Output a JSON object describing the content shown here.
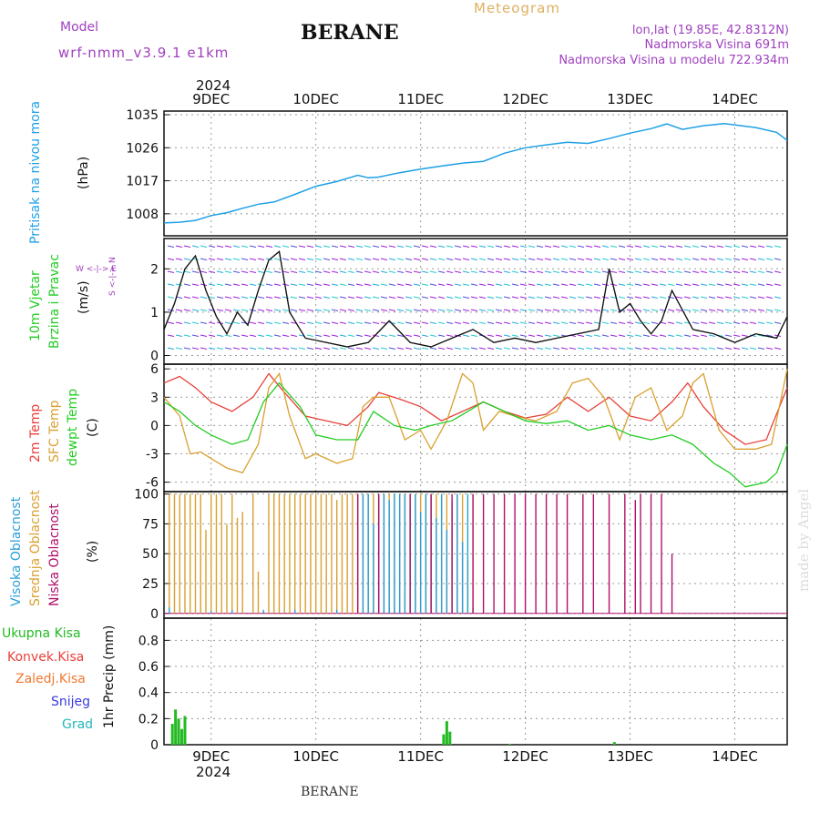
{
  "header": {
    "model_label": "Model",
    "model_name": "wrf-nmm_v3.9.1 e1km",
    "title": "BERANE",
    "subtitle": "Meteogram",
    "coords": "lon,lat (19.85E, 42.8312N)",
    "elev": "Nadmorska Visina 691m",
    "elev_model": "Nadmorska Visina u modelu 722.934m",
    "footer_title": "BERANE",
    "credit": "made by Angel"
  },
  "colors": {
    "pressure": "#1ea0e6",
    "t2m": "#e8403a",
    "sfc": "#d9a030",
    "dew": "#22cc22",
    "high_cloud": "#2a9fd8",
    "mid_cloud": "#d9a030",
    "low_cloud": "#b0106a",
    "total_precip": "#22bb22",
    "convective": "#e8403a",
    "frozen": "#f07830",
    "snow": "#3a3ae0",
    "hail": "#22b8b8",
    "purple": "#a040c0"
  },
  "axis": {
    "year_top": "2024",
    "year_bottom": "2024",
    "dates": [
      "9DEC",
      "10DEC",
      "11DEC",
      "12DEC",
      "13DEC",
      "14DEC"
    ]
  },
  "panel_labels": {
    "pressure": {
      "name": "Pritisak na nivou mora",
      "unit": "(hPa)"
    },
    "wind": {
      "name1": "10m Vjetar",
      "name2": "Brzina i Pravac",
      "unit": "(m/s)",
      "compass_ns": "S <-|-> N",
      "compass_we": "W <-|-> E"
    },
    "temp": {
      "t2m": "2m Temp",
      "sfc": "SFC Temp",
      "dew": "dewpt Temp",
      "unit": "(C)"
    },
    "cloud": {
      "high": "Visoka Oblacnost",
      "mid": "Srednja Oblacnost",
      "low": "Niska Oblacnost",
      "unit": "(%)"
    },
    "precip": {
      "total": "Ukupna Kisa",
      "conv": "Konvek.Kisa",
      "frozen": "Zaledj.Kisa",
      "snow": "Snijeg",
      "hail": "Grad",
      "unit": "1hr Precip (mm)"
    }
  },
  "chart_data": [
    {
      "type": "line",
      "name": "pressure",
      "x": [
        8.55,
        8.7,
        8.85,
        9.0,
        9.15,
        9.3,
        9.45,
        9.6,
        9.8,
        10.0,
        10.2,
        10.4,
        10.5,
        10.6,
        10.8,
        11.0,
        11.2,
        11.4,
        11.6,
        11.8,
        12.0,
        12.2,
        12.4,
        12.6,
        12.8,
        13.0,
        13.2,
        13.35,
        13.5,
        13.7,
        13.9,
        14.2,
        14.4,
        14.5
      ],
      "y": [
        1005.5,
        1005.7,
        1006.2,
        1007.5,
        1008.3,
        1009.5,
        1010.6,
        1011.2,
        1013.3,
        1015.5,
        1016.8,
        1018.5,
        1017.8,
        1018.0,
        1019.2,
        1020.2,
        1021.0,
        1021.8,
        1022.3,
        1024.5,
        1026.0,
        1026.8,
        1027.5,
        1027.2,
        1028.5,
        1030.0,
        1031.2,
        1032.5,
        1031.0,
        1032.0,
        1032.6,
        1031.5,
        1030.2,
        1028.0
      ],
      "yticks": [
        1008,
        1017,
        1026,
        1035
      ],
      "ylim": [
        1002,
        1036
      ]
    },
    {
      "type": "line",
      "name": "wind_speed",
      "x": [
        8.55,
        8.65,
        8.75,
        8.85,
        8.95,
        9.05,
        9.15,
        9.25,
        9.35,
        9.45,
        9.55,
        9.65,
        9.75,
        9.9,
        10.1,
        10.3,
        10.5,
        10.7,
        10.9,
        11.1,
        11.3,
        11.5,
        11.7,
        11.9,
        12.1,
        12.3,
        12.5,
        12.7,
        12.8,
        12.9,
        13.0,
        13.1,
        13.2,
        13.3,
        13.4,
        13.6,
        13.8,
        14.0,
        14.2,
        14.4,
        14.5
      ],
      "y": [
        0.6,
        1.2,
        2.0,
        2.3,
        1.5,
        0.9,
        0.5,
        1.0,
        0.7,
        1.5,
        2.2,
        2.4,
        1.0,
        0.4,
        0.3,
        0.2,
        0.3,
        0.8,
        0.3,
        0.2,
        0.4,
        0.6,
        0.3,
        0.4,
        0.3,
        0.4,
        0.5,
        0.6,
        2.0,
        1.0,
        1.2,
        0.8,
        0.5,
        0.8,
        1.5,
        0.6,
        0.5,
        0.3,
        0.5,
        0.4,
        0.9
      ],
      "yticks": [
        0,
        1,
        2
      ],
      "ylim": [
        -0.2,
        2.7
      ]
    },
    {
      "type": "line",
      "name": "temperature",
      "yticks": [
        -6,
        -3,
        0,
        3,
        6
      ],
      "ylim": [
        -7,
        6.5
      ],
      "series": [
        {
          "name": "2m Temp",
          "x": [
            8.55,
            8.7,
            8.85,
            9.0,
            9.2,
            9.4,
            9.55,
            9.7,
            9.9,
            10.1,
            10.3,
            10.5,
            10.6,
            10.8,
            11.0,
            11.2,
            11.4,
            11.6,
            11.8,
            12.0,
            12.2,
            12.4,
            12.6,
            12.8,
            13.0,
            13.2,
            13.4,
            13.55,
            13.7,
            13.9,
            14.1,
            14.3,
            14.5
          ],
          "y": [
            4.5,
            5.2,
            4.0,
            2.5,
            1.5,
            3.0,
            5.5,
            3.5,
            1.0,
            0.5,
            0.0,
            2.0,
            3.5,
            2.8,
            2.0,
            0.5,
            1.5,
            2.5,
            1.5,
            0.8,
            1.2,
            3.0,
            1.5,
            3.0,
            1.0,
            0.5,
            2.5,
            4.5,
            2.0,
            -0.5,
            -2.0,
            -1.5,
            4.0
          ]
        },
        {
          "name": "SFC Temp",
          "x": [
            8.55,
            8.7,
            8.8,
            8.9,
            9.0,
            9.15,
            9.3,
            9.45,
            9.55,
            9.65,
            9.75,
            9.9,
            10.0,
            10.2,
            10.35,
            10.45,
            10.55,
            10.7,
            10.85,
            11.0,
            11.1,
            11.25,
            11.4,
            11.5,
            11.6,
            11.75,
            11.9,
            12.1,
            12.3,
            12.45,
            12.6,
            12.75,
            12.9,
            13.05,
            13.2,
            13.35,
            13.5,
            13.6,
            13.7,
            13.85,
            14.0,
            14.2,
            14.35,
            14.5
          ],
          "y": [
            3.0,
            1.0,
            -3.0,
            -2.8,
            -3.5,
            -4.5,
            -5.0,
            -2.0,
            4.0,
            5.5,
            1.0,
            -3.5,
            -3.0,
            -4.0,
            -3.5,
            2.0,
            3.0,
            3.0,
            -1.5,
            -0.5,
            -2.5,
            0.5,
            5.5,
            4.5,
            -0.5,
            1.5,
            1.0,
            0.5,
            1.5,
            4.5,
            5.0,
            3.0,
            -1.5,
            3.0,
            4.0,
            -0.5,
            1.0,
            4.5,
            5.5,
            -0.5,
            -2.5,
            -2.5,
            -2.0,
            6.0
          ]
        },
        {
          "name": "dewpt Temp",
          "x": [
            8.55,
            8.7,
            8.85,
            9.0,
            9.2,
            9.35,
            9.5,
            9.65,
            9.85,
            10.0,
            10.2,
            10.4,
            10.55,
            10.75,
            10.95,
            11.1,
            11.3,
            11.45,
            11.6,
            11.8,
            12.0,
            12.2,
            12.4,
            12.6,
            12.8,
            13.0,
            13.2,
            13.4,
            13.6,
            13.8,
            13.95,
            14.1,
            14.3,
            14.4,
            14.5
          ],
          "y": [
            2.5,
            1.5,
            0.0,
            -1.0,
            -2.0,
            -1.5,
            2.5,
            4.5,
            2.0,
            -1.0,
            -1.5,
            -1.5,
            1.5,
            0.0,
            -0.5,
            0.0,
            0.5,
            1.5,
            2.5,
            1.5,
            0.5,
            0.2,
            0.5,
            -0.5,
            0.0,
            -1.0,
            -1.5,
            -1.0,
            -2.0,
            -4.0,
            -5.0,
            -6.5,
            -6.0,
            -5.0,
            -2.0
          ]
        }
      ]
    },
    {
      "type": "bar",
      "name": "cloud_cover",
      "yticks": [
        0,
        25,
        50,
        75,
        100
      ],
      "ylim": [
        -4,
        102
      ],
      "series": [
        {
          "name": "Srednja Oblacnost",
          "x": [
            8.6,
            8.65,
            8.7,
            8.75,
            8.8,
            8.85,
            8.9,
            8.95,
            9.0,
            9.05,
            9.1,
            9.15,
            9.2,
            9.25,
            9.3,
            9.4,
            9.45,
            9.55,
            9.6,
            9.65,
            9.7,
            9.75,
            9.8,
            9.85,
            9.9,
            9.95,
            10.0,
            10.05,
            10.1,
            10.15,
            10.2,
            10.25,
            10.3,
            10.35,
            10.4,
            10.45,
            10.5,
            10.55,
            10.6,
            10.65,
            10.7,
            10.75,
            10.8,
            10.85,
            10.9,
            10.95,
            11.0,
            11.05,
            11.1,
            11.15,
            11.2,
            11.25,
            11.3,
            11.35,
            11.4,
            11.45,
            11.5
          ],
          "y": [
            100,
            100,
            100,
            100,
            100,
            100,
            100,
            70,
            100,
            100,
            100,
            75,
            100,
            80,
            85,
            100,
            35,
            100,
            100,
            100,
            100,
            100,
            100,
            100,
            100,
            100,
            100,
            100,
            100,
            100,
            95,
            100,
            100,
            100,
            100,
            100,
            100,
            100,
            100,
            100,
            100,
            100,
            100,
            100,
            100,
            100,
            100,
            100,
            100,
            100,
            100,
            100,
            90,
            100,
            100,
            45,
            100
          ]
        },
        {
          "name": "Visoka Oblacnost",
          "x": [
            8.6,
            9.0,
            9.2,
            9.5,
            9.8,
            10.2,
            10.45,
            10.5,
            10.55,
            10.6,
            10.65,
            10.7,
            10.75,
            10.8,
            10.85,
            10.9,
            10.95,
            11.0,
            11.05,
            11.1,
            11.15,
            11.2,
            11.25,
            11.3,
            11.35,
            11.4,
            11.45,
            11.5
          ],
          "y": [
            5,
            2,
            3,
            3,
            3,
            3,
            100,
            100,
            75,
            100,
            100,
            95,
            100,
            100,
            100,
            90,
            100,
            85,
            100,
            100,
            80,
            100,
            70,
            95,
            100,
            60,
            100,
            5
          ]
        },
        {
          "name": "Niska Oblacnost",
          "x": [
            10.4,
            10.6,
            10.9,
            11.1,
            11.3,
            11.5,
            11.6,
            11.7,
            11.8,
            11.9,
            12.0,
            12.1,
            12.2,
            12.3,
            12.4,
            12.55,
            12.65,
            12.8,
            12.95,
            13.05,
            13.1,
            13.2,
            13.3,
            13.4
          ],
          "y": [
            100,
            100,
            100,
            100,
            100,
            100,
            100,
            100,
            100,
            100,
            100,
            100,
            100,
            100,
            100,
            100,
            100,
            100,
            100,
            95,
            100,
            100,
            100,
            50
          ]
        }
      ]
    },
    {
      "type": "bar",
      "name": "precipitation",
      "yticks": [
        0,
        0.2,
        0.4,
        0.6,
        0.8
      ],
      "ylim": [
        0,
        0.97
      ],
      "series": [
        {
          "name": "Ukupna Kisa",
          "x": [
            8.63,
            8.66,
            8.69,
            8.72,
            8.75,
            11.22,
            11.25,
            11.28,
            11.85,
            12.85
          ],
          "y": [
            0.16,
            0.27,
            0.2,
            0.12,
            0.22,
            0.08,
            0.18,
            0.1,
            0.005,
            0.02
          ]
        }
      ]
    }
  ]
}
